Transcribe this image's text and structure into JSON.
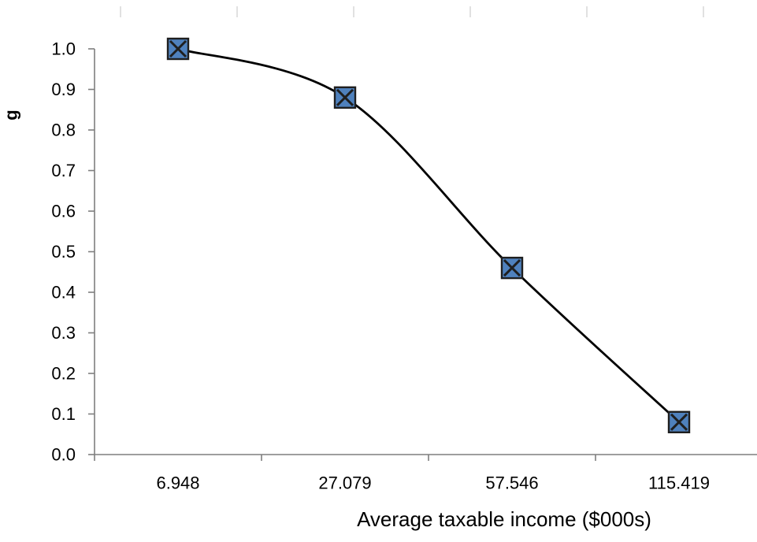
{
  "chart_data": {
    "type": "line",
    "title": "",
    "xlabel": "Average taxable income ($000s)",
    "ylabel": "g",
    "categories": [
      "6.948",
      "27.079",
      "57.546",
      "115.419"
    ],
    "series": [
      {
        "values": [
          1.0,
          0.88,
          0.46,
          0.08
        ]
      }
    ],
    "ylim": [
      0.0,
      1.0
    ],
    "yticks": [
      "0.0",
      "0.1",
      "0.2",
      "0.3",
      "0.4",
      "0.5",
      "0.6",
      "0.7",
      "0.8",
      "0.9",
      "1.0"
    ],
    "grid": false,
    "smoothed": true,
    "marker": "square-x",
    "colors": {
      "line": "#000000",
      "marker_fill": "#4f81bd",
      "marker_border": "#1f1f1f",
      "axis": "#7f7f7f"
    }
  }
}
